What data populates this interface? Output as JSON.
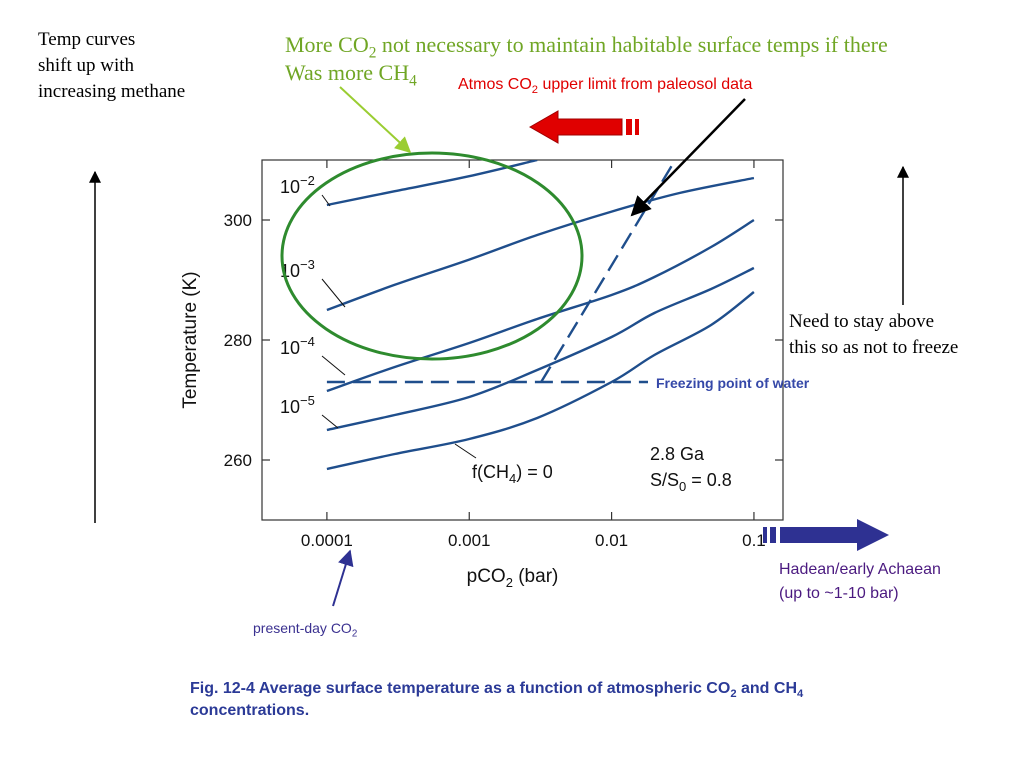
{
  "annotations": {
    "methane_note": [
      "Temp curves",
      "shift up with",
      "increasing methane"
    ],
    "co2_note": {
      "pre": "More CO",
      "sub": "2",
      "mid": " not necessary to maintain habitable surface temps if there",
      "line2": "Was more CH",
      "sub2": "4"
    },
    "paleosol_note": {
      "pre": "Atmos CO",
      "sub": "2",
      "post": " upper limit from paleosol data"
    },
    "stay_above_note": [
      "Need to stay above",
      "this so as not to freeze"
    ],
    "freezing_label": "Freezing point of water",
    "hadean_note": [
      "Hadean/early Achaean",
      "(up to ~1-10 bar)"
    ],
    "present_day": {
      "pre": "present-day CO",
      "sub": "2"
    }
  },
  "caption": {
    "pre": "Fig. 12-4  Average surface temperature as a function of atmospheric CO",
    "sub1": "2",
    "mid": " and CH",
    "sub2": "4",
    "line2": "concentrations."
  },
  "colors": {
    "curve": "#1F4E8C",
    "green": "#2E8B2E",
    "red": "#E00000",
    "navy_arrow": "#2E3192",
    "caption": "#2B3A97"
  },
  "chart_data": {
    "type": "line",
    "xlabel": "pCO2 (bar)",
    "ylabel": "Temperature (K)",
    "xscale": "log",
    "xlim": [
      3.5e-05,
      0.16
    ],
    "ylim": [
      250,
      310
    ],
    "xticks": [
      0.0001,
      0.001,
      0.01,
      0.1
    ],
    "xtick_labels": [
      "0.0001",
      "0.001",
      "0.01",
      "0.1"
    ],
    "yticks": [
      260,
      280,
      300
    ],
    "ytick_labels": [
      "260",
      "280",
      "300"
    ],
    "inset_text": [
      "2.8 Ga",
      "S/S0 = 0.8"
    ],
    "series": [
      {
        "name": "10^-2",
        "label_base": "10",
        "label_exp": "−2",
        "x": [
          0.0001,
          0.0003,
          0.001,
          0.003
        ],
        "y": [
          302.5,
          304.8,
          307.3,
          310
        ]
      },
      {
        "name": "10^-3",
        "label_base": "10",
        "label_exp": "−3",
        "x": [
          0.0001,
          0.0003,
          0.001,
          0.003,
          0.01,
          0.03,
          0.1
        ],
        "y": [
          285,
          289.2,
          293.4,
          297.5,
          301.4,
          304.5,
          307
        ]
      },
      {
        "name": "10^-4",
        "label_base": "10",
        "label_exp": "−4",
        "x": [
          0.0001,
          0.0003,
          0.001,
          0.003,
          0.01,
          0.02,
          0.05,
          0.1
        ],
        "y": [
          271.5,
          275.5,
          279.5,
          283.5,
          287.5,
          290.5,
          295.5,
          300
        ]
      },
      {
        "name": "10^-5",
        "label_base": "10",
        "label_exp": "−5",
        "x": [
          0.0001,
          0.0003,
          0.001,
          0.003,
          0.01,
          0.02,
          0.05,
          0.1
        ],
        "y": [
          265,
          267.5,
          270.5,
          275,
          280.5,
          284.5,
          288.5,
          292
        ]
      },
      {
        "name": "f(CH4) = 0",
        "label_text": "f(CH",
        "label_sub": "4",
        "label_post": ") = 0",
        "x": [
          0.0001,
          0.0003,
          0.001,
          0.003,
          0.01,
          0.02,
          0.05,
          0.1
        ],
        "y": [
          258.5,
          261,
          263.5,
          267,
          273,
          277.5,
          282.5,
          288
        ]
      }
    ],
    "freezing_line": {
      "y": 273,
      "x_start": 0.0001
    },
    "paleosol_limit": {
      "x": [
        0.0032,
        0.028
      ],
      "y": [
        273,
        310
      ]
    }
  }
}
